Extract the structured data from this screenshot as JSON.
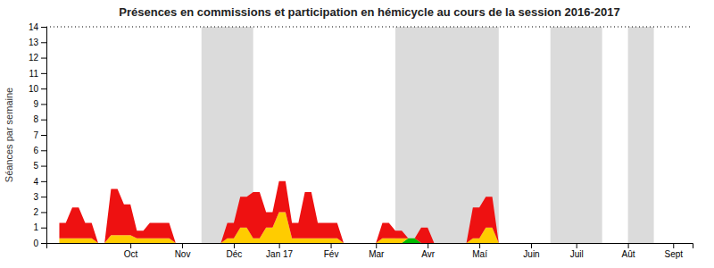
{
  "chart_data": {
    "type": "area",
    "title": "Présences en commissions et participation en hémicycle au cours de la session 2016-2017",
    "y_label": "Séances par semaine",
    "stacked": true,
    "x": [
      0,
      0.5,
      1,
      1.5,
      2,
      2.5,
      3,
      3.5,
      4,
      4.5,
      5,
      5.5,
      6,
      6.5,
      7,
      7.5,
      8,
      8.5,
      9,
      9.5,
      10,
      10.5,
      11,
      11.5,
      12,
      12.5,
      13,
      13.5,
      14,
      14.5,
      15,
      15.5,
      16,
      16.5,
      17,
      17.5,
      18,
      18.5,
      19,
      19.5,
      20,
      20.5,
      21,
      21.5,
      22,
      22.5,
      23,
      23.5,
      24,
      24.5,
      25,
      25.5,
      26,
      26.5,
      27,
      27.5,
      28,
      28.5,
      29,
      29.5,
      30,
      30.5,
      31,
      31.5,
      32,
      32.5,
      33,
      33.5,
      34,
      34.5,
      35,
      35.5,
      36,
      36.5,
      37,
      37.5,
      38,
      38.5,
      39,
      39.5,
      40,
      40.5,
      41,
      41.5,
      42,
      42.5,
      43,
      43.5,
      44,
      44.5,
      45,
      45.5,
      46,
      46.5,
      47,
      47.5
    ],
    "series": [
      {
        "color": "#00bb00",
        "values": [
          0,
          0,
          0,
          0,
          0,
          0,
          0,
          0,
          0,
          0,
          0,
          0,
          0,
          0,
          0,
          0,
          0,
          0,
          0,
          0,
          0,
          0,
          0,
          0,
          0,
          0,
          0,
          0,
          0,
          0,
          0,
          0,
          0,
          0,
          0,
          0,
          0,
          0,
          0,
          0,
          0,
          0,
          0,
          0,
          0,
          0,
          0,
          0,
          0,
          0,
          0,
          0,
          0,
          0,
          0.3,
          0.3,
          0,
          0,
          0,
          0,
          0,
          0,
          0,
          0,
          0,
          0,
          0,
          0,
          0,
          0,
          0,
          0,
          0,
          0,
          0,
          0,
          0,
          0,
          0,
          0,
          0,
          0,
          0,
          0,
          0,
          0,
          0,
          0,
          0,
          0,
          0,
          0,
          0,
          0,
          0,
          0
        ]
      },
      {
        "color": "#ffcc00",
        "values": [
          0.3,
          0.3,
          0.3,
          0.3,
          0.3,
          0.3,
          0,
          0,
          0.5,
          0.5,
          0.5,
          0.5,
          0.3,
          0.3,
          0.3,
          0.3,
          0.3,
          0.3,
          0,
          0,
          0,
          0,
          0,
          0,
          0,
          0,
          0.3,
          0.3,
          1,
          1,
          0.3,
          0.3,
          1,
          1,
          2,
          2,
          0.3,
          0.3,
          0.3,
          0.3,
          0.3,
          0.3,
          0.3,
          0.3,
          0,
          0,
          0,
          0,
          0,
          0,
          0.3,
          0.3,
          0.3,
          0.3,
          0,
          0,
          0,
          0,
          0,
          0,
          0,
          0,
          0,
          0,
          0.3,
          0.3,
          1,
          1,
          0,
          0,
          0,
          0,
          0,
          0,
          0,
          0,
          0,
          0,
          0,
          0,
          0,
          0,
          0,
          0,
          0,
          0,
          0,
          0,
          0,
          0,
          0,
          0,
          0,
          0,
          0,
          0
        ]
      },
      {
        "color": "#ee1111",
        "values": [
          1,
          1,
          2,
          2,
          1,
          1,
          0,
          0,
          3,
          3,
          2,
          2,
          0.5,
          0.5,
          1,
          1,
          1,
          1,
          0,
          0,
          0,
          0,
          0,
          0,
          0,
          0,
          1,
          1,
          2,
          2,
          3,
          3,
          1,
          1,
          2,
          2,
          1,
          1,
          3,
          3,
          1,
          1,
          1,
          1,
          0,
          0,
          0,
          0,
          0,
          0,
          1,
          1,
          0.5,
          0.5,
          0,
          0,
          1,
          1,
          0,
          0,
          0,
          0,
          0,
          0,
          2,
          2,
          2,
          2,
          0,
          0,
          0,
          0,
          0,
          0,
          0,
          0,
          0,
          0,
          0,
          0,
          0,
          0,
          0,
          0,
          0,
          0,
          0,
          0,
          0,
          0,
          0,
          0,
          0,
          0,
          0,
          0
        ]
      }
    ],
    "bands": [
      [
        11,
        15
      ],
      [
        26,
        34
      ],
      [
        38,
        42
      ],
      [
        44,
        46
      ]
    ],
    "hlines": [
      14
    ],
    "xlim": [
      -1,
      49
    ],
    "xticks": [
      {
        "value": 5.5,
        "label": "Oct"
      },
      {
        "value": 9.5,
        "label": "Nov"
      },
      {
        "value": 13.5,
        "label": "Déc"
      },
      {
        "value": 17,
        "label": "Jan 17"
      },
      {
        "value": 21,
        "label": "Fév"
      },
      {
        "value": 24.5,
        "label": "Mar"
      },
      {
        "value": 28.5,
        "label": "Avr"
      },
      {
        "value": 32.5,
        "label": "Maí"
      },
      {
        "value": 36.5,
        "label": "Juin"
      },
      {
        "value": 40,
        "label": "Juil"
      },
      {
        "value": 44,
        "label": "Aût"
      },
      {
        "value": 47.5,
        "label": "Sept"
      }
    ],
    "ylim": [
      0,
      14
    ],
    "yticks": [
      0,
      1,
      2,
      3,
      4,
      5,
      6,
      7,
      8,
      9,
      10,
      11,
      12,
      13,
      14
    ]
  }
}
